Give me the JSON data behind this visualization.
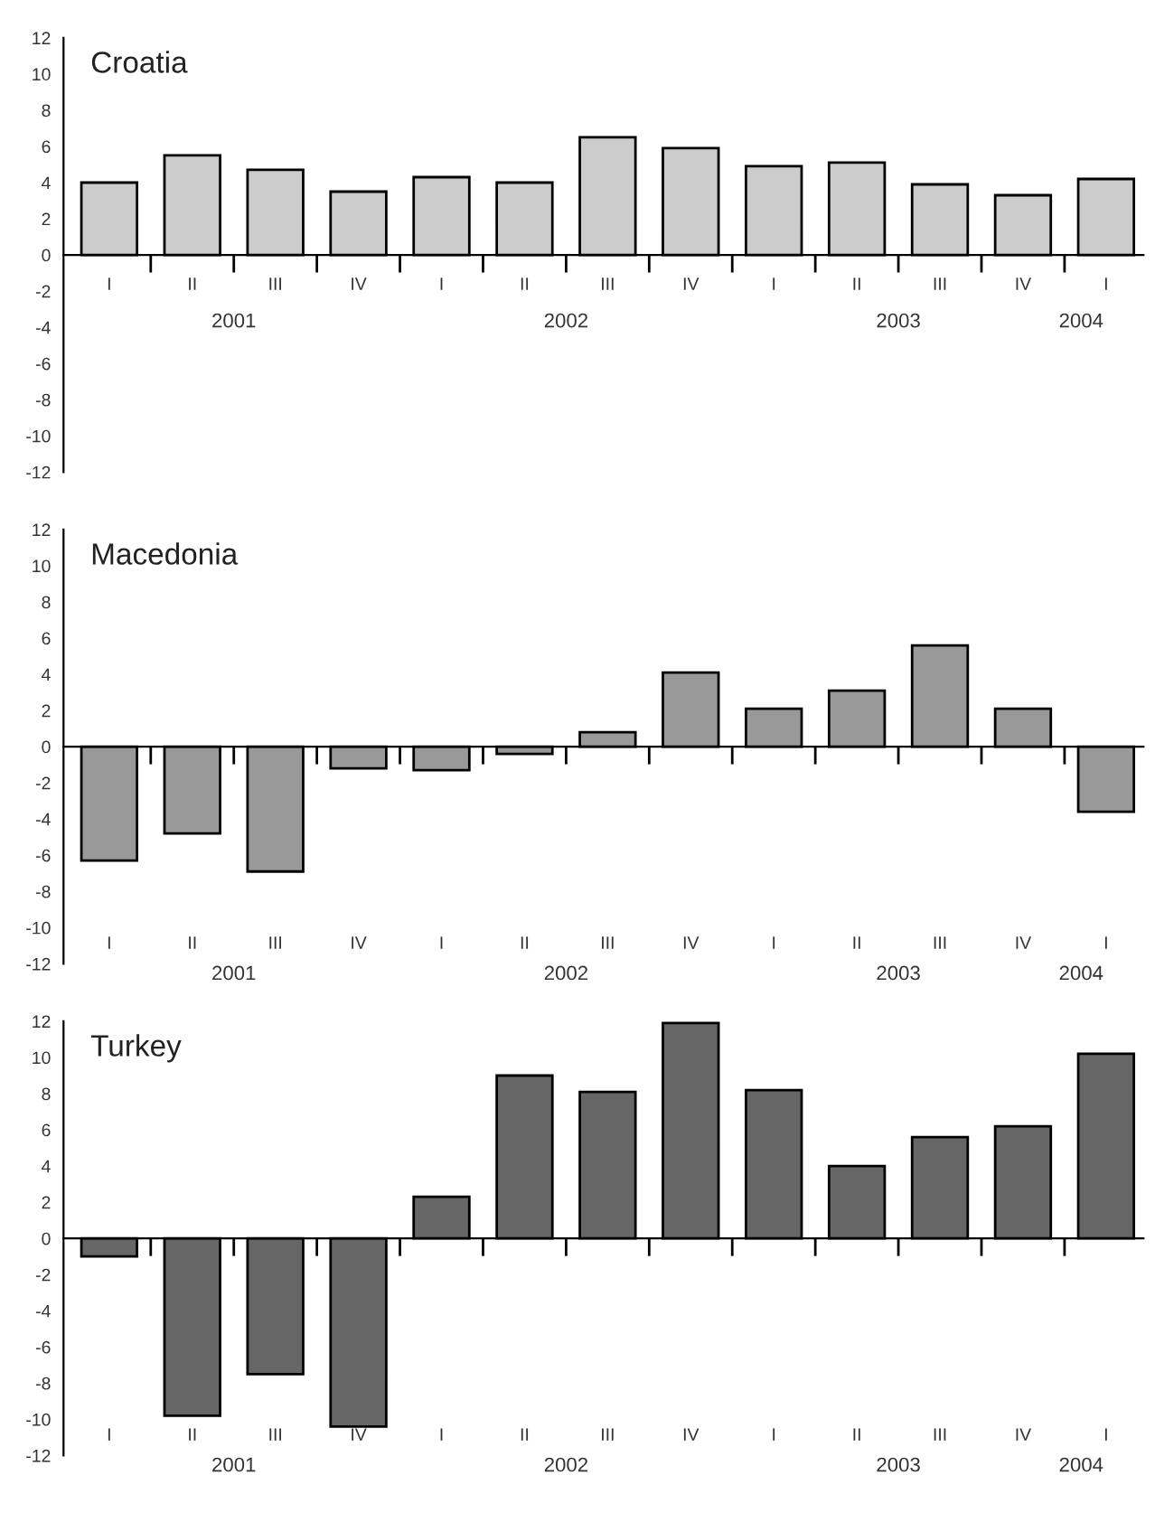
{
  "chart_data": [
    {
      "type": "bar",
      "title": "Croatia",
      "categories": [
        "I",
        "II",
        "III",
        "IV",
        "I",
        "II",
        "III",
        "IV",
        "I",
        "II",
        "III",
        "IV",
        "I"
      ],
      "values": [
        4.0,
        5.5,
        4.7,
        3.5,
        4.3,
        4.0,
        6.5,
        5.9,
        4.9,
        5.1,
        3.9,
        3.3,
        4.2
      ],
      "color": "#cccccc",
      "ylim": [
        -12,
        12
      ],
      "yticks": [
        -12,
        -10,
        -8,
        -6,
        -4,
        -2,
        0,
        2,
        4,
        6,
        8,
        10,
        12
      ],
      "annotations": [
        "2001",
        "2002",
        "2003",
        "2004"
      ]
    },
    {
      "type": "bar",
      "title": "Macedonia",
      "categories": [
        "I",
        "II",
        "III",
        "IV",
        "I",
        "II",
        "III",
        "IV",
        "I",
        "II",
        "III",
        "IV",
        "I"
      ],
      "values": [
        -6.3,
        -4.8,
        -6.9,
        -1.2,
        -1.3,
        -0.4,
        0.8,
        4.1,
        2.1,
        3.1,
        5.6,
        2.1,
        -3.6
      ],
      "color": "#999999",
      "ylim": [
        -12,
        12
      ],
      "yticks": [
        -12,
        -10,
        -8,
        -6,
        -4,
        -2,
        0,
        2,
        4,
        6,
        8,
        10,
        12
      ],
      "annotations": [
        "2001",
        "2002",
        "2003",
        "2004"
      ]
    },
    {
      "type": "bar",
      "title": "Turkey",
      "categories": [
        "I",
        "II",
        "III",
        "IV",
        "I",
        "II",
        "III",
        "IV",
        "I",
        "II",
        "III",
        "IV",
        "I"
      ],
      "values": [
        -1.0,
        -9.8,
        -7.5,
        -10.4,
        2.3,
        9.0,
        8.1,
        11.9,
        8.2,
        4.0,
        5.6,
        6.2,
        10.2
      ],
      "color": "#666666",
      "ylim": [
        -12,
        12
      ],
      "yticks": [
        -12,
        -10,
        -8,
        -6,
        -4,
        -2,
        0,
        2,
        4,
        6,
        8,
        10,
        12
      ],
      "annotations": [
        "2001",
        "2002",
        "2003",
        "2004"
      ]
    }
  ]
}
